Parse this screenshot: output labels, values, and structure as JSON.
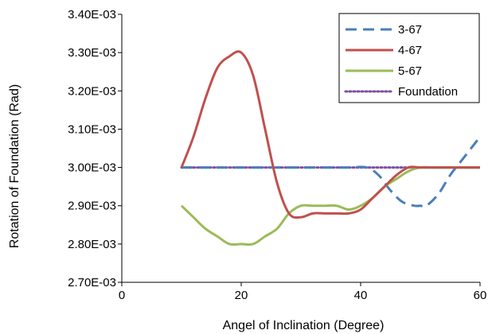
{
  "chart_data": {
    "type": "line",
    "xlabel": "Angel of Inclination (Degree)",
    "ylabel": "Rotation of Foundation (Rad)",
    "xlim": [
      0,
      60
    ],
    "ylim": [
      0.0027,
      0.0034
    ],
    "x_ticks": [
      0,
      20,
      40,
      60
    ],
    "x_tick_labels": [
      "0",
      "20",
      "40",
      "60"
    ],
    "y_ticks": [
      0.0027,
      0.0028,
      0.0029,
      0.003,
      0.0031,
      0.0032,
      0.0033,
      0.0034
    ],
    "y_tick_labels": [
      "2.70E-03",
      "2.80E-03",
      "2.90E-03",
      "3.00E-03",
      "3.10E-03",
      "3.20E-03",
      "3.30E-03",
      "3.40E-03"
    ],
    "grid": false,
    "legend_position": "top-right",
    "series": [
      {
        "name": "3-67",
        "color": "#4a7ebb",
        "style": "dashed",
        "x": [
          10,
          15,
          20,
          25,
          30,
          33,
          35,
          38,
          41,
          43,
          45,
          47,
          49,
          50,
          51,
          53,
          55,
          57,
          59,
          60
        ],
        "y": [
          0.003,
          0.003,
          0.003,
          0.003,
          0.003,
          0.003,
          0.003,
          0.003,
          0.003,
          0.00298,
          0.00294,
          0.00291,
          0.0029,
          0.0029,
          0.0029,
          0.00293,
          0.00298,
          0.00302,
          0.00306,
          0.00308
        ]
      },
      {
        "name": "4-67",
        "color": "#c0504d",
        "style": "solid",
        "x": [
          10,
          12,
          14,
          16,
          18,
          20,
          22,
          24,
          26,
          28,
          30,
          32,
          34,
          36,
          38,
          40,
          42,
          44,
          46,
          48,
          50,
          52,
          54,
          56,
          58,
          60
        ],
        "y": [
          0.003,
          0.00308,
          0.00318,
          0.00326,
          0.00329,
          0.0033,
          0.00324,
          0.0031,
          0.00296,
          0.00288,
          0.00287,
          0.00288,
          0.00288,
          0.00288,
          0.00288,
          0.00289,
          0.00292,
          0.00295,
          0.00298,
          0.003,
          0.003,
          0.003,
          0.003,
          0.003,
          0.003,
          0.003
        ]
      },
      {
        "name": "5-67",
        "color": "#9bbb59",
        "style": "solid",
        "x": [
          10,
          12,
          14,
          16,
          18,
          20,
          22,
          24,
          26,
          28,
          30,
          32,
          34,
          36,
          38,
          40,
          42,
          44,
          46,
          48,
          50,
          52,
          54,
          56,
          58,
          60
        ],
        "y": [
          0.0029,
          0.00287,
          0.00284,
          0.00282,
          0.0028,
          0.0028,
          0.0028,
          0.00282,
          0.00284,
          0.00288,
          0.0029,
          0.0029,
          0.0029,
          0.0029,
          0.00289,
          0.0029,
          0.00292,
          0.00295,
          0.00297,
          0.00299,
          0.003,
          0.003,
          0.003,
          0.003,
          0.003,
          0.003
        ]
      },
      {
        "name": "Foundation",
        "color": "#7f4fa3",
        "style": "dotted",
        "x": [
          10,
          60
        ],
        "y": [
          0.003,
          0.003
        ]
      }
    ]
  }
}
